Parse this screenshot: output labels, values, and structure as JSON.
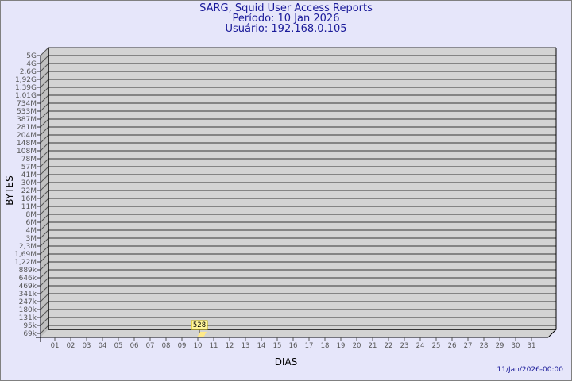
{
  "header": {
    "title": "SARG, Squid User Access Reports",
    "period": "Período: 10 Jan 2026",
    "user": "Usuário: 192.168.0.105"
  },
  "footer": {
    "timestamp": "11/Jan/2026-00:00"
  },
  "colors": {
    "background": "#e6e6fa",
    "plot": "#d3d3d3",
    "bar": "#ffee99",
    "text": "#1a1a99"
  },
  "chart_data": {
    "type": "bar",
    "xlabel": "DIAS",
    "ylabel": "BYTES",
    "y_scale": "log",
    "grid": true,
    "categories": [
      "01",
      "02",
      "03",
      "04",
      "05",
      "06",
      "07",
      "08",
      "09",
      "10",
      "11",
      "12",
      "13",
      "14",
      "15",
      "16",
      "17",
      "18",
      "19",
      "20",
      "21",
      "22",
      "23",
      "24",
      "25",
      "26",
      "27",
      "28",
      "29",
      "30",
      "31"
    ],
    "y_tick_labels": [
      "5G",
      "4G",
      "2,6G",
      "1,92G",
      "1,39G",
      "1,01G",
      "734M",
      "533M",
      "387M",
      "281M",
      "204M",
      "148M",
      "108M",
      "78M",
      "57M",
      "41M",
      "30M",
      "22M",
      "16M",
      "11M",
      "8M",
      "6M",
      "4M",
      "3M",
      "2,3M",
      "1,69M",
      "1,22M",
      "889k",
      "646k",
      "469k",
      "341k",
      "247k",
      "180k",
      "131k",
      "95k",
      "69k"
    ],
    "series": [
      {
        "points": [
          {
            "x": "10",
            "y": 528,
            "label": "528"
          }
        ]
      }
    ]
  }
}
